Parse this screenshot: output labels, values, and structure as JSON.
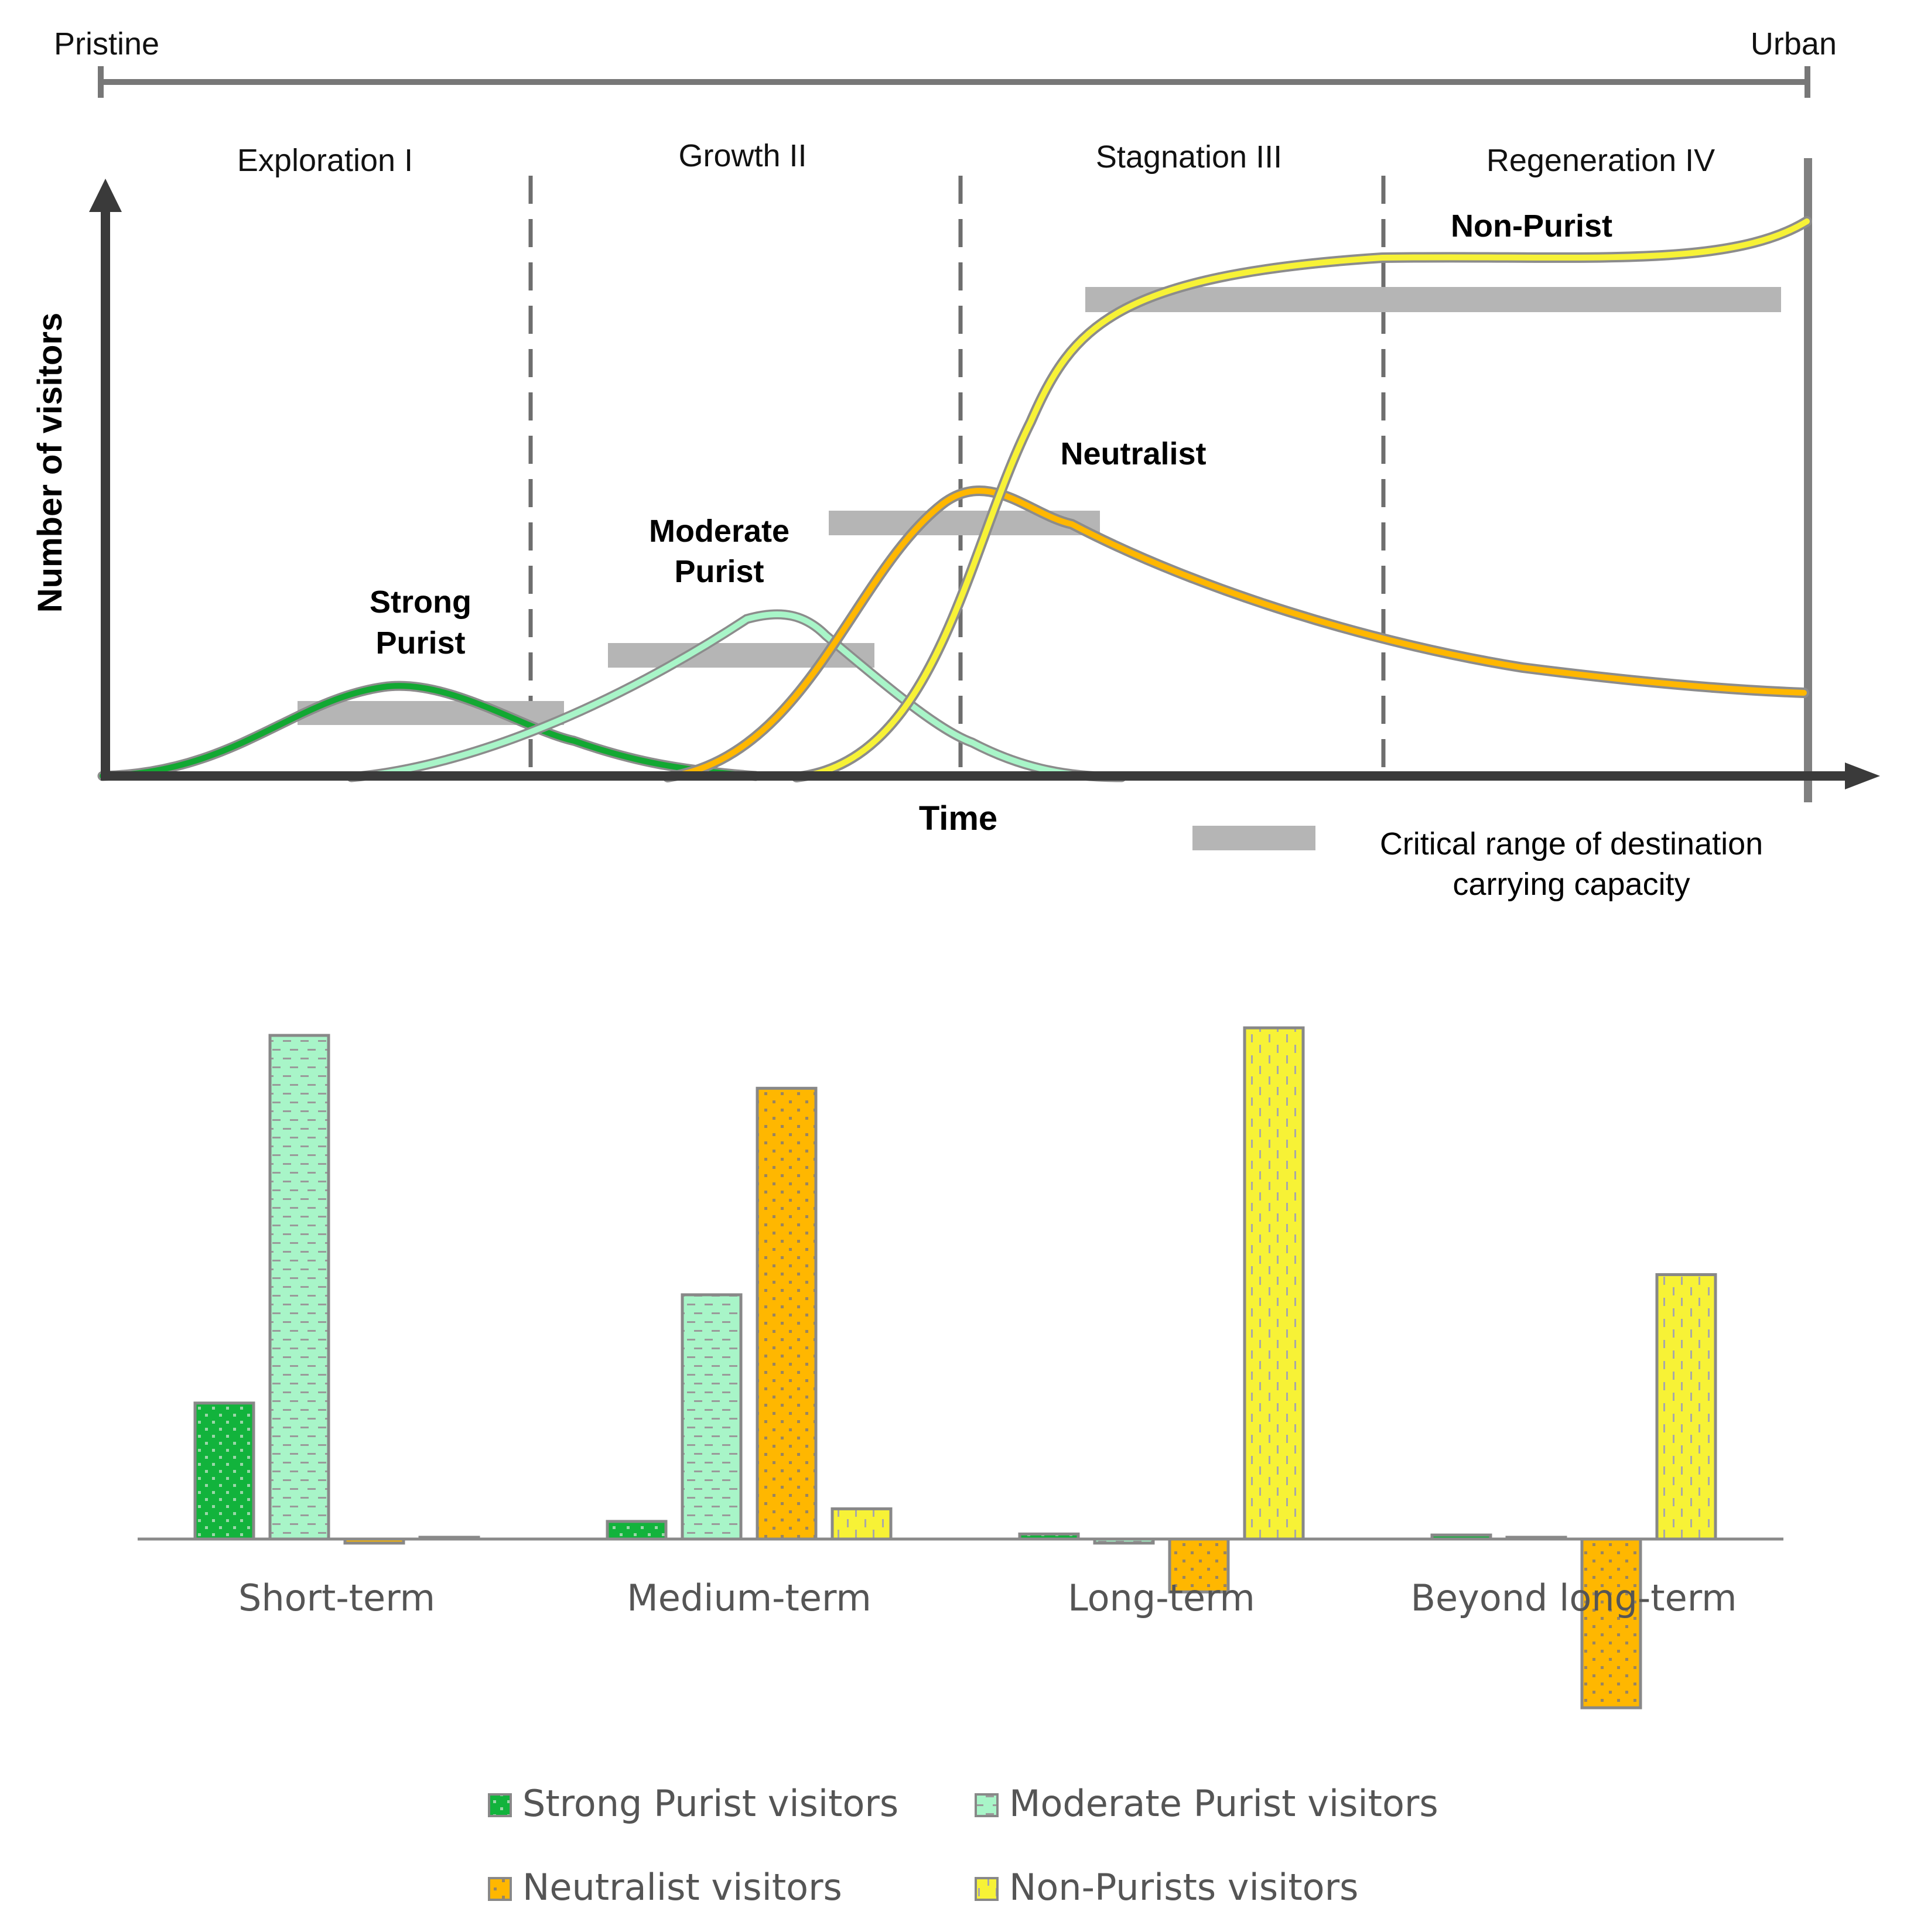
{
  "scale": {
    "left_label": "Pristine",
    "right_label": "Urban"
  },
  "lifecycle_chart": {
    "type": "line",
    "ylabel": "Number of visitors",
    "xlabel": "Time",
    "phases": [
      "Exploration I",
      "Growth II",
      "Stagnation III",
      "Regeneration IV"
    ],
    "curve_labels": {
      "strong": [
        "Strong",
        "Purist"
      ],
      "moderate": [
        "Moderate",
        "Purist"
      ],
      "neutralist": "Neutralist",
      "nonpurist": "Non-Purist"
    },
    "legend_label_line1": "Critical range of destination",
    "legend_label_line2": "carrying capacity"
  },
  "chart_data": {
    "type": "bar",
    "categories": [
      "Short-term",
      "Medium-term",
      "Long-term",
      "Beyond long-term"
    ],
    "ylim": [
      -35,
      100
    ],
    "series": [
      {
        "name": "Strong Purist visitors",
        "color": "#12b33c",
        "values": [
          27,
          3.5,
          1,
          0.8
        ]
      },
      {
        "name": "Moderate Purist visitors",
        "color": "#a8f5c8",
        "values": [
          100,
          48.5,
          -0.8,
          0
        ]
      },
      {
        "name": "Neutralist visitors",
        "color": "#ffb700",
        "values": [
          -0.8,
          89.5,
          -10.5,
          -33.5
        ]
      },
      {
        "name": "Non-Purists visitors",
        "color": "#f7f236",
        "values": [
          0,
          6,
          101.5,
          52.5
        ]
      }
    ]
  }
}
